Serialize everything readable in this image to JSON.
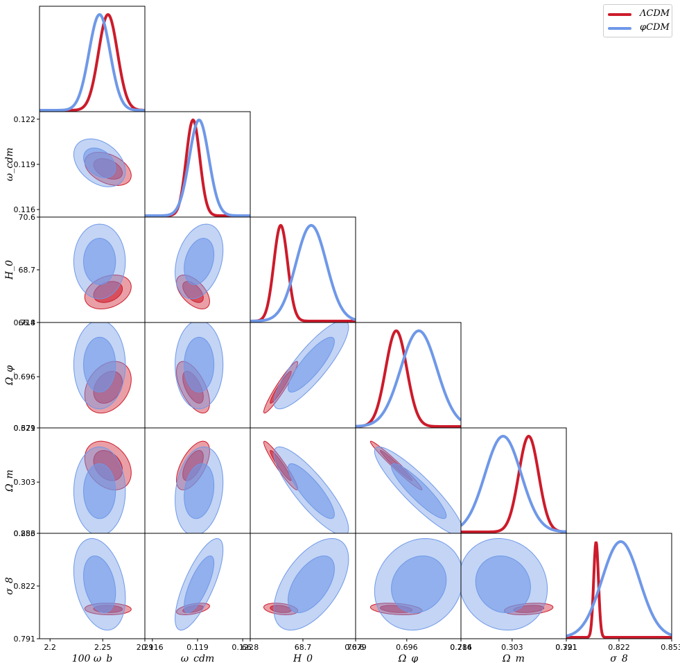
{
  "chart_data": {
    "type": "corner",
    "title": "",
    "parameters": [
      {
        "key": "wb",
        "label": "100 ω_b",
        "range": [
          2.19,
          2.29
        ],
        "ticks": [
          2.2,
          2.25,
          2.29
        ],
        "tick_labels": [
          "2.2",
          "2.25",
          "2.29"
        ]
      },
      {
        "key": "wcdm",
        "label": "ω_cdm",
        "range": [
          0.1155,
          0.1225
        ],
        "ticks": [
          0.116,
          0.119,
          0.122
        ],
        "tick_labels": [
          "0.116",
          "0.119",
          "0.122"
        ]
      },
      {
        "key": "H0",
        "label": "H_0",
        "range": [
          66.8,
          70.6
        ],
        "ticks": [
          66.8,
          68.7,
          70.6
        ],
        "tick_labels": [
          "66.8",
          "68.7",
          "70.6"
        ]
      },
      {
        "key": "Ophi",
        "label": "Ω_φ",
        "range": [
          0.679,
          0.714
        ],
        "ticks": [
          0.679,
          0.696,
          0.714
        ],
        "tick_labels": [
          "0.679",
          "0.696",
          "0.714"
        ]
      },
      {
        "key": "Om",
        "label": "Ω_m",
        "range": [
          0.286,
          0.321
        ],
        "ticks": [
          0.286,
          0.303,
          0.321
        ],
        "tick_labels": [
          "0.286",
          "0.303",
          "0.321"
        ]
      },
      {
        "key": "s8",
        "label": "σ_8",
        "range": [
          0.791,
          0.853
        ],
        "ticks": [
          0.791,
          0.822,
          0.853
        ],
        "tick_labels": [
          "0.791",
          "0.822",
          "0.853"
        ]
      }
    ],
    "series": [
      {
        "name": "ΛCDM",
        "color": "#cc1b2b",
        "mean": [
          2.255,
          0.1187,
          67.9,
          0.6925,
          0.3085,
          0.8085
        ],
        "sigma": [
          0.009,
          0.00045,
          0.25,
          0.0035,
          0.0033,
          0.0014
        ],
        "correlation": [
          [
            1.0,
            -0.4,
            0.3,
            0.3,
            -0.3,
            -0.05
          ],
          [
            -0.4,
            1.0,
            -0.55,
            -0.6,
            0.6,
            0.5
          ],
          [
            0.3,
            -0.55,
            1.0,
            0.95,
            -0.95,
            -0.3
          ],
          [
            0.3,
            -0.6,
            0.95,
            1.0,
            -0.98,
            -0.3
          ],
          [
            -0.3,
            0.6,
            -0.95,
            -0.98,
            1.0,
            0.3
          ],
          [
            -0.05,
            0.5,
            -0.3,
            -0.3,
            0.3,
            1.0
          ]
        ]
      },
      {
        "name": "φCDM",
        "color": "#6f98e8",
        "mean": [
          2.247,
          0.1191,
          69.0,
          0.7,
          0.3,
          0.823
        ],
        "sigma": [
          0.01,
          0.00065,
          0.55,
          0.006,
          0.006,
          0.011
        ],
        "correlation": [
          [
            1.0,
            -0.35,
            0.0,
            0.0,
            0.0,
            -0.3
          ],
          [
            -0.35,
            1.0,
            0.3,
            0.0,
            0.2,
            0.75
          ],
          [
            0.0,
            0.3,
            1.0,
            0.85,
            -0.85,
            0.55
          ],
          [
            0.0,
            0.0,
            0.85,
            1.0,
            -0.9,
            0.15
          ],
          [
            0.0,
            0.2,
            -0.85,
            -0.9,
            1.0,
            -0.1
          ],
          [
            -0.3,
            0.75,
            0.55,
            0.15,
            -0.1,
            1.0
          ]
        ]
      }
    ],
    "contour_levels": [
      "68%",
      "95%"
    ],
    "legend_position": "top-right"
  },
  "legend": {
    "items": [
      {
        "label": "ΛCDM",
        "color": "#cc1b2b"
      },
      {
        "label": "φCDM",
        "color": "#6f98e8"
      }
    ]
  }
}
